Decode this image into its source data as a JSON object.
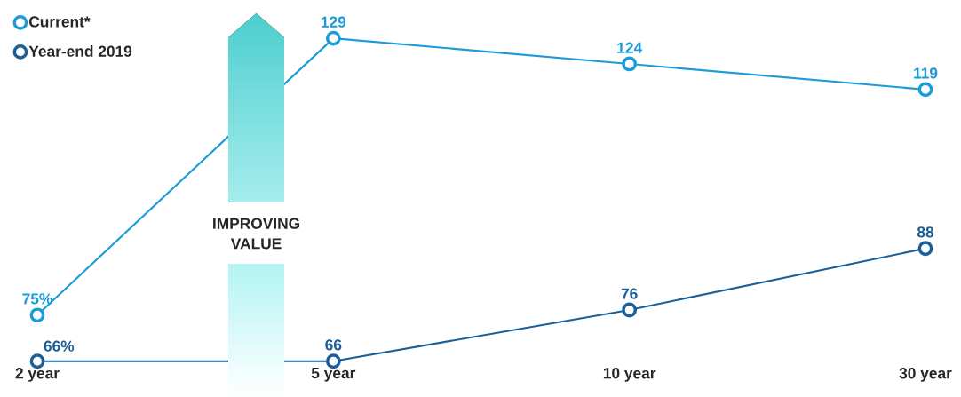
{
  "chart_data": {
    "type": "line",
    "categories": [
      "2 year",
      "5 year",
      "10 year",
      "30 year"
    ],
    "series": [
      {
        "name": "Current*",
        "color": "#1b9bd7",
        "values": [
          75,
          129,
          124,
          119
        ],
        "value_labels": [
          "75%",
          "129",
          "124",
          "119"
        ]
      },
      {
        "name": "Year-end 2019",
        "color": "#1a5f98",
        "values": [
          66,
          66,
          76,
          88
        ],
        "value_labels": [
          "66%",
          "66",
          "76",
          "88"
        ]
      }
    ],
    "tick_labels": "x",
    "legend": "top left",
    "marker": "circle",
    "line_style": "solid",
    "annotations": [
      "IMPROVING VALUE"
    ]
  }
}
